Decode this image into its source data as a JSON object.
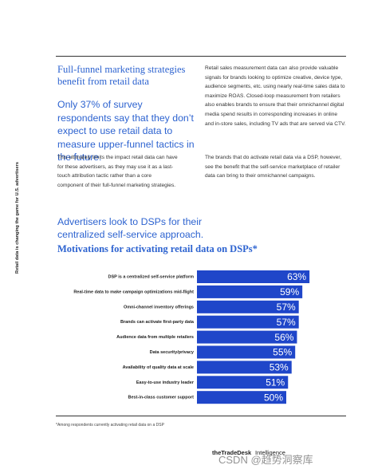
{
  "side_label": "Retail data is changing the game for U.S. advertisers",
  "section": {
    "heading": "Full-funnel marketing strategies benefit from retail data",
    "pull_quote": "Only 37% of survey respondents say that they don’t expect to use retail data to measure upper-funnel tactics in the future.",
    "left_body": "This ultimately limits the impact retail data can have for these advertisers, as they may use it as a last-touch attribution tactic rather than a core component of their full-funnel marketing strategies.",
    "right_body": [
      "Retail sales measurement data can also provide valuable signals for brands looking to optimize creative, device type, audience segments, etc. using nearly real-time sales data to maximize ROAS. Closed-loop measurement from retailers also enables brands to ensure that their omnichannel digital media spend results in corresponding increases in online and in-store sales, including TV ads that are served via CTV.",
      "The brands that do activate retail data via a DSP, however, see the benefit that the self-service marketplace of retailer data can bring to their omnichannel campaigns."
    ],
    "callout": "Advertisers look to DSPs for their centralized self-service approach."
  },
  "chart_data": {
    "type": "bar",
    "orientation": "horizontal",
    "title": "Motivations for activating retail data on DSPs*",
    "categories": [
      "DSP is a centralized self-service platform",
      "Real-time data to make campaign optimizations mid-flight",
      "Omni-channel inventory offerings",
      "Brands can activate first-party data",
      "Audience data from multiple retailers",
      "Data security/privacy",
      "Availability of quality data at scale",
      "Easy-to-use industry leader",
      "Best-in-class customer support"
    ],
    "values": [
      63,
      59,
      57,
      57,
      56,
      55,
      53,
      51,
      50
    ],
    "value_labels": [
      "63%",
      "59%",
      "57%",
      "57%",
      "56%",
      "55%",
      "53%",
      "51%",
      "50%"
    ],
    "color": "#1f46c9",
    "footnote": "*Among respondents currently activating retail data on a DSP"
  },
  "footer": {
    "brand": "theTradeDesk",
    "product": "Intelligence",
    "watermark": "CSDN @趋势洞察库"
  }
}
